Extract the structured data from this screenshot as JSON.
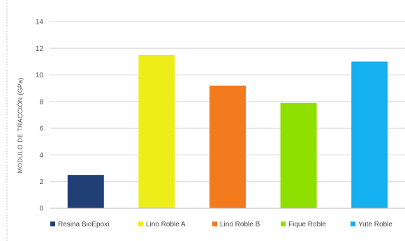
{
  "chart_data": {
    "type": "bar",
    "title": "",
    "ylabel": "MODULO DE TRACCIÓN (GPa)",
    "xlabel": "",
    "ylim": [
      0,
      14
    ],
    "yticks": [
      0,
      2,
      4,
      6,
      8,
      10,
      12,
      14
    ],
    "grid": true,
    "legend_position": "bottom",
    "categories": [
      "Resina BioEpoxi",
      "Lino Roble A",
      "Lino Roble B",
      "Fique Roble",
      "Yute Roble"
    ],
    "values": [
      2.5,
      11.5,
      9.2,
      7.9,
      11.0
    ],
    "colors": [
      "#1f3f75",
      "#eded1a",
      "#f47a1e",
      "#8fe000",
      "#14b0f0"
    ]
  }
}
